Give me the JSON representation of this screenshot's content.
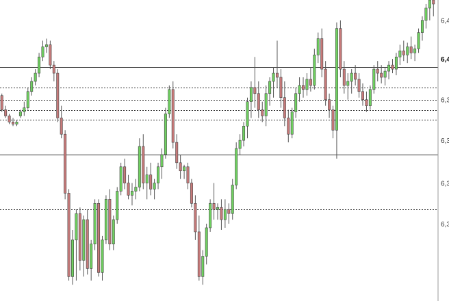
{
  "chart_data": {
    "type": "candlestick",
    "title": "",
    "xlabel": "",
    "ylabel": "",
    "ylim": [
      6.29,
      6.438
    ],
    "price_axis_labels": [
      {
        "text": "6,4",
        "value": 6.428,
        "bold": false
      },
      {
        "text": "6,4",
        "value": 6.409,
        "bold": true
      },
      {
        "text": "6,3",
        "value": 6.389,
        "bold": false
      },
      {
        "text": "6,3",
        "value": 6.369,
        "bold": false
      },
      {
        "text": "6,3",
        "value": 6.348,
        "bold": false
      },
      {
        "text": "6,3",
        "value": 6.328,
        "bold": false
      }
    ],
    "horizontal_levels": [
      {
        "value": 6.405,
        "style": "solid"
      },
      {
        "value": 6.395,
        "style": "dashed"
      },
      {
        "value": 6.389,
        "style": "dashed"
      },
      {
        "value": 6.384,
        "style": "dashed"
      },
      {
        "value": 6.379,
        "style": "dashed"
      },
      {
        "value": 6.362,
        "style": "solid"
      },
      {
        "value": 6.335,
        "style": "dashed"
      }
    ],
    "colors": {
      "up": "#6fd160",
      "down": "#c77a7a",
      "wick": "#555555",
      "grid": "#333333",
      "background": "#ffffff"
    },
    "candles": [
      [
        6.391,
        6.392,
        6.383,
        6.384
      ],
      [
        6.384,
        6.386,
        6.38,
        6.381
      ],
      [
        6.381,
        6.382,
        6.377,
        6.378
      ],
      [
        6.378,
        6.38,
        6.376,
        6.377
      ],
      [
        6.377,
        6.379,
        6.376,
        6.378
      ],
      [
        6.381,
        6.384,
        6.38,
        6.383
      ],
      [
        6.383,
        6.388,
        6.381,
        6.385
      ],
      [
        6.385,
        6.395,
        6.384,
        6.393
      ],
      [
        6.393,
        6.4,
        6.391,
        6.398
      ],
      [
        6.398,
        6.404,
        6.396,
        6.402
      ],
      [
        6.402,
        6.412,
        6.4,
        6.41
      ],
      [
        6.41,
        6.418,
        6.408,
        6.415
      ],
      [
        6.415,
        6.419,
        6.412,
        6.416
      ],
      [
        6.416,
        6.418,
        6.404,
        6.406
      ],
      [
        6.406,
        6.408,
        6.398,
        6.402
      ],
      [
        6.402,
        6.404,
        6.378,
        6.38
      ],
      [
        6.38,
        6.386,
        6.37,
        6.372
      ],
      [
        6.372,
        6.374,
        6.34,
        6.343
      ],
      [
        6.343,
        6.345,
        6.3,
        6.302
      ],
      [
        6.302,
        6.325,
        6.298,
        6.32
      ],
      [
        6.32,
        6.335,
        6.3,
        6.333
      ],
      [
        6.333,
        6.336,
        6.305,
        6.31
      ],
      [
        6.31,
        6.332,
        6.302,
        6.33
      ],
      [
        6.33,
        6.335,
        6.303,
        6.306
      ],
      [
        6.306,
        6.32,
        6.3,
        6.318
      ],
      [
        6.318,
        6.34,
        6.315,
        6.338
      ],
      [
        6.338,
        6.34,
        6.302,
        6.304
      ],
      [
        6.304,
        6.322,
        6.3,
        6.32
      ],
      [
        6.32,
        6.342,
        6.318,
        6.34
      ],
      [
        6.34,
        6.345,
        6.315,
        6.318
      ],
      [
        6.318,
        6.332,
        6.315,
        6.33
      ],
      [
        6.33,
        6.346,
        6.328,
        6.344
      ],
      [
        6.344,
        6.358,
        6.342,
        6.356
      ],
      [
        6.356,
        6.36,
        6.345,
        6.348
      ],
      [
        6.348,
        6.352,
        6.34,
        6.342
      ],
      [
        6.342,
        6.348,
        6.337,
        6.344
      ],
      [
        6.344,
        6.35,
        6.34,
        6.346
      ],
      [
        6.346,
        6.37,
        6.344,
        6.366
      ],
      [
        6.366,
        6.372,
        6.345,
        6.348
      ],
      [
        6.348,
        6.356,
        6.34,
        6.352
      ],
      [
        6.352,
        6.358,
        6.342,
        6.345
      ],
      [
        6.345,
        6.35,
        6.34,
        6.348
      ],
      [
        6.348,
        6.358,
        6.345,
        6.356
      ],
      [
        6.356,
        6.365,
        6.35,
        6.362
      ],
      [
        6.362,
        6.385,
        6.36,
        6.382
      ],
      [
        6.382,
        6.396,
        6.38,
        6.394
      ],
      [
        6.394,
        6.398,
        6.365,
        6.368
      ],
      [
        6.368,
        6.372,
        6.355,
        6.358
      ],
      [
        6.358,
        6.362,
        6.35,
        6.354
      ],
      [
        6.354,
        6.357,
        6.35,
        6.356
      ],
      [
        6.356,
        6.358,
        6.345,
        6.348
      ],
      [
        6.348,
        6.35,
        6.336,
        6.338
      ],
      [
        6.338,
        6.342,
        6.32,
        6.324
      ],
      [
        6.324,
        6.332,
        6.3,
        6.302
      ],
      [
        6.302,
        6.315,
        6.298,
        6.312
      ],
      [
        6.312,
        6.328,
        6.308,
        6.326
      ],
      [
        6.326,
        6.34,
        6.324,
        6.338
      ],
      [
        6.338,
        6.348,
        6.33,
        6.335
      ],
      [
        6.335,
        6.338,
        6.33,
        6.336
      ],
      [
        6.336,
        6.34,
        6.325,
        6.33
      ],
      [
        6.33,
        6.34,
        6.326,
        6.335
      ],
      [
        6.335,
        6.338,
        6.328,
        6.333
      ],
      [
        6.333,
        6.35,
        6.33,
        6.347
      ],
      [
        6.347,
        6.368,
        6.345,
        6.365
      ],
      [
        6.365,
        6.372,
        6.362,
        6.369
      ],
      [
        6.369,
        6.378,
        6.366,
        6.376
      ],
      [
        6.376,
        6.39,
        6.37,
        6.388
      ],
      [
        6.388,
        6.398,
        6.38,
        6.395
      ],
      [
        6.395,
        6.41,
        6.385,
        6.392
      ],
      [
        6.392,
        6.398,
        6.38,
        6.384
      ],
      [
        6.384,
        6.388,
        6.378,
        6.381
      ],
      [
        6.381,
        6.396,
        6.376,
        6.392
      ],
      [
        6.392,
        6.4,
        6.386,
        6.398
      ],
      [
        6.398,
        6.405,
        6.39,
        6.402
      ],
      [
        6.402,
        6.418,
        6.395,
        6.4
      ],
      [
        6.4,
        6.404,
        6.385,
        6.39
      ],
      [
        6.39,
        6.398,
        6.376,
        6.38
      ],
      [
        6.38,
        6.384,
        6.368,
        6.372
      ],
      [
        6.372,
        6.385,
        6.37,
        6.383
      ],
      [
        6.383,
        6.395,
        6.38,
        6.392
      ],
      [
        6.392,
        6.4,
        6.388,
        6.396
      ],
      [
        6.396,
        6.4,
        6.39,
        6.394
      ],
      [
        6.394,
        6.402,
        6.391,
        6.399
      ],
      [
        6.399,
        6.405,
        6.393,
        6.396
      ],
      [
        6.396,
        6.414,
        6.394,
        6.411
      ],
      [
        6.411,
        6.422,
        6.407,
        6.419
      ],
      [
        6.419,
        6.424,
        6.4,
        6.404
      ],
      [
        6.404,
        6.408,
        6.386,
        6.389
      ],
      [
        6.389,
        6.392,
        6.38,
        6.384
      ],
      [
        6.384,
        6.386,
        6.37,
        6.374
      ],
      [
        6.374,
        6.427,
        6.36,
        6.424
      ],
      [
        6.424,
        6.428,
        6.4,
        6.404
      ],
      [
        6.404,
        6.408,
        6.392,
        6.396
      ],
      [
        6.396,
        6.402,
        6.389,
        6.398
      ],
      [
        6.398,
        6.404,
        6.392,
        6.402
      ],
      [
        6.402,
        6.406,
        6.396,
        6.399
      ],
      [
        6.399,
        6.402,
        6.39,
        6.393
      ],
      [
        6.393,
        6.397,
        6.386,
        6.389
      ],
      [
        6.389,
        6.393,
        6.383,
        6.386
      ],
      [
        6.386,
        6.396,
        6.384,
        6.394
      ],
      [
        6.394,
        6.406,
        6.392,
        6.404
      ],
      [
        6.404,
        6.408,
        6.398,
        6.402
      ],
      [
        6.402,
        6.406,
        6.397,
        6.4
      ],
      [
        6.4,
        6.405,
        6.396,
        6.403
      ],
      [
        6.403,
        6.408,
        6.399,
        6.406
      ],
      [
        6.406,
        6.409,
        6.402,
        6.404
      ],
      [
        6.404,
        6.412,
        6.401,
        6.41
      ],
      [
        6.41,
        6.416,
        6.406,
        6.413
      ],
      [
        6.413,
        6.418,
        6.408,
        6.411
      ],
      [
        6.411,
        6.417,
        6.407,
        6.415
      ],
      [
        6.415,
        6.42,
        6.409,
        6.412
      ],
      [
        6.412,
        6.416,
        6.408,
        6.414
      ],
      [
        6.414,
        6.424,
        6.412,
        6.422
      ],
      [
        6.422,
        6.43,
        6.418,
        6.428
      ],
      [
        6.428,
        6.436,
        6.424,
        6.434
      ],
      [
        6.434,
        6.44,
        6.428,
        6.438
      ],
      [
        6.438,
        6.44,
        6.43,
        6.436
      ]
    ]
  }
}
